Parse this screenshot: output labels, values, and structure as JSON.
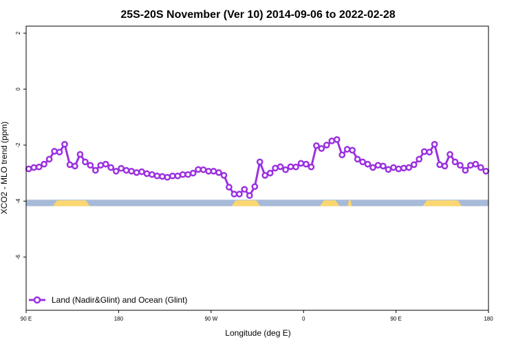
{
  "chart_data": {
    "type": "line",
    "title": "25S-20S November (Ver 10)   2014-09-06 to 2022-02-28",
    "xlabel": "Longitude (deg E)",
    "ylabel": "XCO2 - MLO trend (ppm)",
    "xlim": [
      90,
      540
    ],
    "ylim": [
      -7.9,
      2.25
    ],
    "x_ticks": [
      {
        "value": 90,
        "label": "90 E"
      },
      {
        "value": 180,
        "label": "180"
      },
      {
        "value": 270,
        "label": "90 W"
      },
      {
        "value": 360,
        "label": "0"
      },
      {
        "value": 450,
        "label": "90 E"
      },
      {
        "value": 540,
        "label": "180"
      }
    ],
    "y_ticks": [
      {
        "value": 2,
        "label": "2"
      },
      {
        "value": 0,
        "label": "0"
      },
      {
        "value": -2,
        "label": "-2"
      },
      {
        "value": -4,
        "label": "-4"
      },
      {
        "value": -6,
        "label": "-6"
      }
    ],
    "grid": false,
    "legend_position": "bottom-left",
    "series": [
      {
        "name": "Land (Nadir&Glint) and Ocean (Glint)",
        "color": "#9b30e0",
        "x": [
          92.5,
          97.5,
          102.5,
          107.5,
          112.5,
          117.5,
          122.5,
          127.5,
          132.5,
          137.5,
          142.5,
          147.5,
          152.5,
          157.5,
          162.5,
          167.5,
          172.5,
          177.5,
          182.5,
          187.5,
          192.5,
          197.5,
          202.5,
          207.5,
          212.5,
          217.5,
          222.5,
          227.5,
          232.5,
          237.5,
          242.5,
          247.5,
          252.5,
          257.5,
          262.5,
          267.5,
          272.5,
          277.5,
          282.5,
          287.5,
          292.5,
          297.5,
          302.5,
          307.5,
          312.5,
          317.5,
          322.5,
          327.5,
          332.5,
          337.5,
          342.5,
          347.5,
          352.5,
          357.5,
          362.5,
          367.5,
          372.5,
          377.5,
          382.5,
          387.5,
          392.5,
          397.5,
          402.5,
          407.5,
          412.5,
          417.5,
          422.5,
          427.5,
          432.5,
          437.5,
          442.5,
          447.5,
          452.5,
          457.5,
          462.5,
          467.5,
          472.5,
          477.5,
          482.5,
          487.5,
          492.5,
          497.5,
          502.5,
          507.5,
          512.5,
          517.5,
          522.5,
          527.5,
          532.5,
          537.5
        ],
        "values": [
          -2.85,
          -2.8,
          -2.78,
          -2.68,
          -2.5,
          -2.22,
          -2.25,
          -1.97,
          -2.7,
          -2.75,
          -2.33,
          -2.6,
          -2.72,
          -2.9,
          -2.72,
          -2.68,
          -2.8,
          -2.93,
          -2.83,
          -2.9,
          -2.93,
          -2.98,
          -2.95,
          -3.02,
          -3.05,
          -3.1,
          -3.12,
          -3.15,
          -3.1,
          -3.1,
          -3.05,
          -3.05,
          -3.0,
          -2.87,
          -2.88,
          -2.93,
          -2.93,
          -2.98,
          -3.08,
          -3.5,
          -3.75,
          -3.75,
          -3.58,
          -3.8,
          -3.48,
          -2.6,
          -3.08,
          -3.0,
          -2.82,
          -2.77,
          -2.88,
          -2.77,
          -2.78,
          -2.65,
          -2.68,
          -2.78,
          -2.02,
          -2.12,
          -2.0,
          -1.85,
          -1.8,
          -2.35,
          -2.15,
          -2.18,
          -2.5,
          -2.6,
          -2.68,
          -2.8,
          -2.72,
          -2.75,
          -2.87,
          -2.8,
          -2.85,
          -2.82,
          -2.8,
          -2.7,
          -2.5,
          -2.23,
          -2.25,
          -1.97,
          -2.7,
          -2.75,
          -2.33,
          -2.6,
          -2.72,
          -2.9,
          -2.72,
          -2.68,
          -2.8,
          -2.93
        ]
      }
    ],
    "surface_strip": {
      "y_range": [
        -4.18,
        -3.95
      ],
      "ocean_color": "#a7bbd8",
      "land_color": "#fcd770",
      "land_segments": [
        [
          116,
          152
        ],
        [
          290,
          318
        ],
        [
          376,
          395
        ],
        [
          403,
          407
        ],
        [
          476,
          514
        ]
      ]
    }
  }
}
